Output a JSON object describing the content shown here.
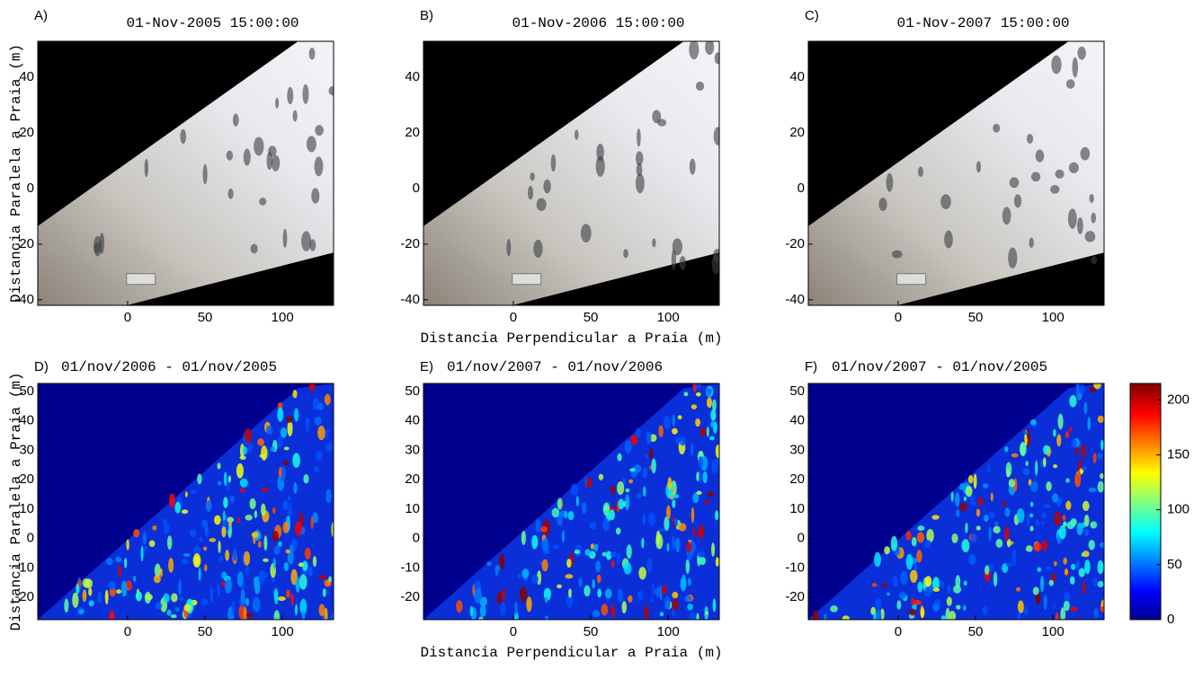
{
  "chart_data": [
    {
      "type": "image",
      "label": "A)",
      "title": "01-Nov-2005 15:00:00",
      "ylabel": "Distancia Paralela a Praia (m)",
      "xlim": [
        -58,
        133
      ],
      "ylim": [
        -42,
        53
      ],
      "xticks": [
        0,
        50,
        100
      ],
      "yticks": [
        -40,
        -20,
        0,
        20,
        40
      ]
    },
    {
      "type": "image",
      "label": "B)",
      "title": "01-Nov-2006 15:00:00",
      "xlabel": "Distancia Perpendicular a Praia (m)",
      "xlim": [
        -58,
        133
      ],
      "ylim": [
        -42,
        53
      ],
      "xticks": [
        0,
        50,
        100
      ],
      "yticks": [
        -40,
        -20,
        0,
        20,
        40
      ]
    },
    {
      "type": "image",
      "label": "C)",
      "title": "01-Nov-2007 15:00:00",
      "xlim": [
        -58,
        133
      ],
      "ylim": [
        -42,
        53
      ],
      "xticks": [
        0,
        50,
        100
      ],
      "yticks": [
        -40,
        -20,
        0,
        20,
        40
      ]
    },
    {
      "type": "heatmap",
      "label": "D)",
      "title": "01/nov/2006 - 01/nov/2005",
      "ylabel": "Distancia Paralela a Praia (m)",
      "xlim": [
        -58,
        133
      ],
      "ylim": [
        -27.6,
        52.7
      ],
      "xticks": [
        0,
        50,
        100
      ],
      "yticks": [
        -20,
        -10,
        0,
        10,
        20,
        30,
        40,
        50
      ]
    },
    {
      "type": "heatmap",
      "label": "E)",
      "title": "01/nov/2007 - 01/nov/2006",
      "xlabel": "Distancia Perpendicular a Praia (m)",
      "xlim": [
        -58,
        133
      ],
      "ylim": [
        -27.6,
        52.7
      ],
      "xticks": [
        0,
        50,
        100
      ],
      "yticks": [
        -20,
        -10,
        0,
        10,
        20,
        30,
        40,
        50
      ]
    },
    {
      "type": "heatmap",
      "label": "F)",
      "title": "01/nov/2007 - 01/nov/2005",
      "xlim": [
        -58,
        133
      ],
      "ylim": [
        -27.6,
        52.7
      ],
      "xticks": [
        0,
        50,
        100
      ],
      "yticks": [
        -20,
        -10,
        0,
        10,
        20,
        30,
        40,
        50
      ]
    },
    {
      "type": "colorbar",
      "ylim": [
        0,
        215
      ],
      "yticks": [
        0,
        50,
        100,
        150,
        200
      ]
    }
  ]
}
